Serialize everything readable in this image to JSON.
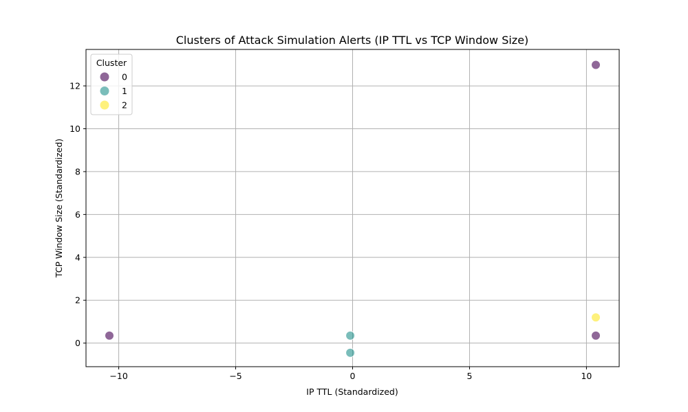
{
  "chart_data": {
    "type": "scatter",
    "title": "Clusters of Attack Simulation Alerts (IP TTL vs TCP Window Size)",
    "xlabel": "IP TTL (Standardized)",
    "ylabel": "TCP Window Size (Standardized)",
    "xlim": [
      -11.4,
      11.4
    ],
    "ylim": [
      -1.1,
      13.7
    ],
    "xticks": [
      -10,
      -5,
      0,
      5,
      10
    ],
    "xtick_labels": [
      "−10",
      "−5",
      "0",
      "5",
      "10"
    ],
    "yticks": [
      0,
      2,
      4,
      6,
      8,
      10,
      12
    ],
    "ytick_labels": [
      "0",
      "2",
      "4",
      "6",
      "8",
      "10",
      "12"
    ],
    "grid": true,
    "legend": {
      "title": "Cluster",
      "placement": "top-left"
    },
    "series": [
      {
        "name": "0",
        "color": "#440154",
        "points": [
          [
            -10.4,
            0.35
          ],
          [
            10.4,
            12.98
          ],
          [
            10.4,
            0.35
          ]
        ]
      },
      {
        "name": "1",
        "color": "#21918c",
        "points": [
          [
            -0.1,
            0.35
          ],
          [
            -0.1,
            -0.45
          ]
        ]
      },
      {
        "name": "2",
        "color": "#fde725",
        "points": [
          [
            10.4,
            1.2
          ]
        ]
      }
    ]
  }
}
